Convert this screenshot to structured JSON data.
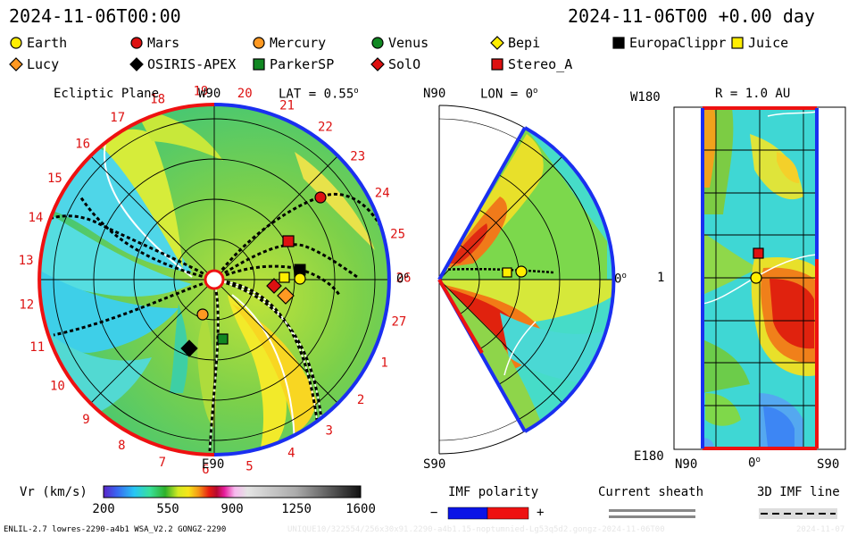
{
  "header": {
    "timestamp": "2024-11-06T00:00",
    "model_time": "2024-11-06T00 +0.00 day"
  },
  "legend": [
    {
      "name": "Earth",
      "marker": "circle",
      "color": "#ffee00"
    },
    {
      "name": "Mars",
      "marker": "circle",
      "color": "#dd1111"
    },
    {
      "name": "Mercury",
      "marker": "circle",
      "color": "#ff9922"
    },
    {
      "name": "Venus",
      "marker": "circle",
      "color": "#118822"
    },
    {
      "name": "Bepi",
      "marker": "diamond",
      "color": "#ffee00"
    },
    {
      "name": "EuropaClippr",
      "marker": "square",
      "color": "#000000"
    },
    {
      "name": "Juice",
      "marker": "square",
      "color": "#ffee00"
    },
    {
      "name": "Lucy",
      "marker": "diamond",
      "color": "#ff9922"
    },
    {
      "name": "OSIRIS-APEX",
      "marker": "diamond",
      "color": "#000000"
    },
    {
      "name": "ParkerSP",
      "marker": "square",
      "color": "#118822"
    },
    {
      "name": "SolO",
      "marker": "diamond",
      "color": "#dd1111"
    },
    {
      "name": "Stereo_A",
      "marker": "square",
      "color": "#dd1111"
    }
  ],
  "panels": {
    "ecliptic": {
      "title": "Ecliptic Plane",
      "lat_label": "LAT = 0.55",
      "lat_degree": "o",
      "w90": "W90",
      "e90": "E90",
      "zero": "0",
      "zero_degree": "o",
      "rotation_ticks": [
        "1",
        "2",
        "3",
        "4",
        "5",
        "6",
        "7",
        "8",
        "9",
        "10",
        "11",
        "12",
        "13",
        "14",
        "15",
        "16",
        "17",
        "18",
        "19",
        "20",
        "21",
        "22",
        "23",
        "24",
        "25",
        "26",
        "27"
      ]
    },
    "meridional": {
      "n90": "N90",
      "s90": "S90",
      "lon_label": "LON = 0",
      "lon_degree": "o",
      "zero": "0",
      "zero_degree": "o"
    },
    "radial": {
      "title": "R = 1.0 AU",
      "w180": "W180",
      "e180": "E180",
      "one": "1",
      "n90": "N90",
      "s90": "S90",
      "zero": "0",
      "zero_degree": "o"
    }
  },
  "colorbar": {
    "label": "Vr (km/s)",
    "ticks": [
      "200",
      "550",
      "900",
      "1250",
      "1600"
    ],
    "tick_values": [
      200,
      550,
      900,
      1250,
      1600
    ]
  },
  "imf": {
    "polarity_label": "IMF polarity",
    "minus": "−",
    "plus": "+",
    "neg_color": "#0a14e6",
    "pos_color": "#ee1111",
    "sheath_label": "Current sheath",
    "line_label": "3D IMF line"
  },
  "footer": {
    "model_info": "ENLIL-2.7 lowres-2290-a4b1 WSA_V2.2 GONGZ-2290",
    "run_info": "UNIQUE10/322554/256x30x91.2290-a4b1.15-noptumnied-Lg53q5d2.gongz-2024-11-06T00",
    "date_info": "2024-11-07"
  },
  "chart_data": {
    "type": "heatmap",
    "quantity": "Vr (km/s)",
    "color_range": [
      200,
      1600
    ],
    "panels": [
      "Ecliptic Plane",
      "LON = 0",
      "R = 1.0 AU"
    ],
    "earth_lat_deg": 0.55,
    "earth_lon_deg": 0,
    "r_au": 1.0
  }
}
